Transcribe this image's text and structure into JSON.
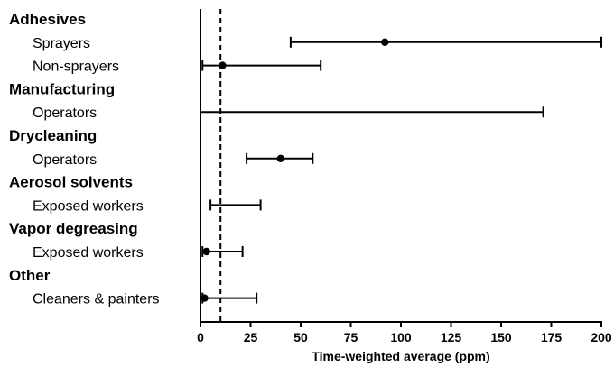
{
  "chart_data": {
    "type": "errorbar",
    "xlabel": "Time-weighted average (ppm)",
    "xlim": [
      0,
      200
    ],
    "x_ticks": [
      0,
      25,
      50,
      75,
      100,
      125,
      150,
      175,
      200
    ],
    "x_tick_labels": [
      "0",
      "25",
      "50",
      "75",
      "100",
      "125",
      "150",
      "175",
      "200"
    ],
    "reference_line": {
      "x": 10,
      "style": "dashed"
    },
    "groups": [
      {
        "label": "Adhesives",
        "rows": [
          {
            "label": "Sprayers",
            "low": 45,
            "high": 200,
            "point": 92
          },
          {
            "label": "Non-sprayers",
            "low": 1,
            "high": 60,
            "point": 11
          }
        ]
      },
      {
        "label": "Manufacturing",
        "rows": [
          {
            "label": "Operators",
            "low": 0,
            "high": 171,
            "point": null,
            "low_cap": false
          }
        ]
      },
      {
        "label": "Drycleaning",
        "rows": [
          {
            "label": "Operators",
            "low": 23,
            "high": 56,
            "point": 40
          }
        ]
      },
      {
        "label": "Aerosol solvents",
        "rows": [
          {
            "label": "Exposed workers",
            "low": 5,
            "high": 30,
            "point": null
          }
        ]
      },
      {
        "label": "Vapor degreasing",
        "rows": [
          {
            "label": "Exposed workers",
            "low": 1,
            "high": 21,
            "point": 3
          }
        ]
      },
      {
        "label": "Other",
        "rows": [
          {
            "label": "Cleaners & painters",
            "low": 1,
            "high": 28,
            "point": 2
          }
        ]
      }
    ],
    "grid": false,
    "legend": "none"
  }
}
